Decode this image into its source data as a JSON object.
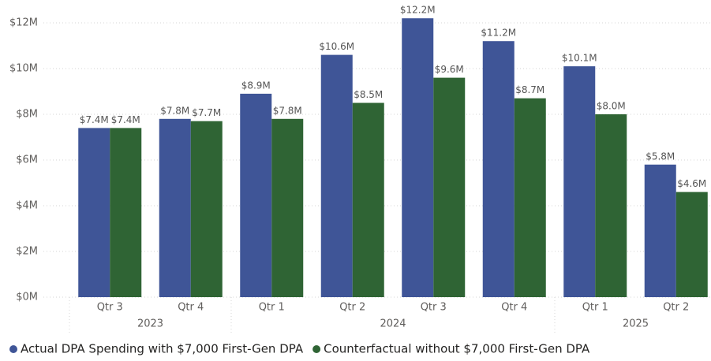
{
  "chart_data": {
    "type": "bar",
    "groups": [
      {
        "label": "2023",
        "categories": [
          "Qtr 3",
          "Qtr 4"
        ]
      },
      {
        "label": "2024",
        "categories": [
          "Qtr 1",
          "Qtr 2",
          "Qtr 3",
          "Qtr 4"
        ]
      },
      {
        "label": "2025",
        "categories": [
          "Qtr 1",
          "Qtr 2"
        ]
      }
    ],
    "series": [
      {
        "name": "Actual DPA Spending with $7,000 First-Gen DPA",
        "color": "#3f5597",
        "values": [
          7400000,
          7800000,
          8900000,
          10600000,
          12200000,
          11200000,
          10100000,
          5800000
        ],
        "value_labels": [
          "$7.4M",
          "$7.8M",
          "$8.9M",
          "$10.6M",
          "$12.2M",
          "$11.2M",
          "$10.1M",
          "$5.8M"
        ]
      },
      {
        "name": "Counterfactual without $7,000 First-Gen DPA",
        "color": "#2f6434",
        "values": [
          7400000,
          7700000,
          7800000,
          8500000,
          9600000,
          8700000,
          8000000,
          4600000
        ],
        "value_labels": [
          "$7.4M",
          "$7.7M",
          "$7.8M",
          "$8.5M",
          "$9.6M",
          "$8.7M",
          "$8.0M",
          "$4.6M"
        ]
      }
    ],
    "ylim": [
      0,
      12000000
    ],
    "yticks": [
      {
        "value": 0,
        "label": "$0M"
      },
      {
        "value": 2000000,
        "label": "$2M"
      },
      {
        "value": 4000000,
        "label": "$4M"
      },
      {
        "value": 6000000,
        "label": "$6M"
      },
      {
        "value": 8000000,
        "label": "$8M"
      },
      {
        "value": 10000000,
        "label": "$10M"
      },
      {
        "value": 12000000,
        "label": "$12M"
      }
    ],
    "grid": true,
    "legend": "bottom-left"
  }
}
